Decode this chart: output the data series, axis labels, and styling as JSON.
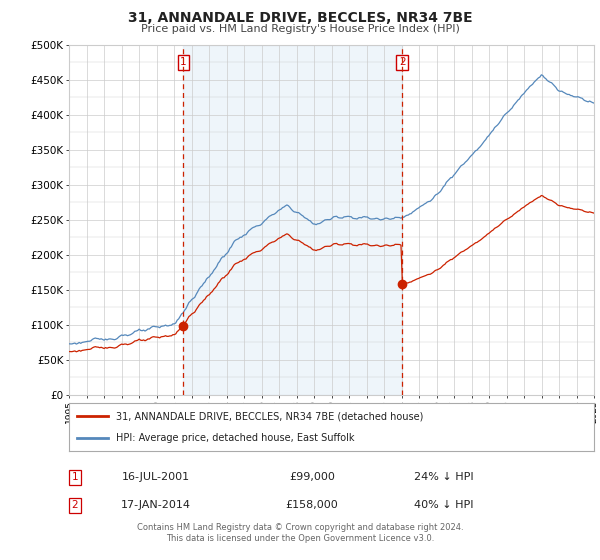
{
  "title_line1": "31, ANNANDALE DRIVE, BECCLES, NR34 7BE",
  "title_line2": "Price paid vs. HM Land Registry's House Price Index (HPI)",
  "ylim": [
    0,
    500000
  ],
  "yticks": [
    0,
    50000,
    100000,
    150000,
    200000,
    250000,
    300000,
    350000,
    400000,
    450000,
    500000
  ],
  "ytick_labels": [
    "£0",
    "£50K",
    "£100K",
    "£150K",
    "£200K",
    "£250K",
    "£300K",
    "£350K",
    "£400K",
    "£450K",
    "£500K"
  ],
  "hpi_color": "#5588bb",
  "property_color": "#cc2200",
  "dashed_line_color": "#cc2200",
  "shaded_color": "#ddeeff",
  "marker_color": "#cc2200",
  "background_color": "#ffffff",
  "grid_color": "#cccccc",
  "sale1_date_num": 2001.54,
  "sale1_price": 99000,
  "sale1_label": "1",
  "sale1_date_str": "16-JUL-2001",
  "sale1_price_str": "£99,000",
  "sale1_pct": "24% ↓ HPI",
  "sale2_date_num": 2014.05,
  "sale2_price": 158000,
  "sale2_label": "2",
  "sale2_date_str": "17-JAN-2014",
  "sale2_price_str": "£158,000",
  "sale2_pct": "40% ↓ HPI",
  "legend_line1": "31, ANNANDALE DRIVE, BECCLES, NR34 7BE (detached house)",
  "legend_line2": "HPI: Average price, detached house, East Suffolk",
  "footnote1": "Contains HM Land Registry data © Crown copyright and database right 2024.",
  "footnote2": "This data is licensed under the Open Government Licence v3.0."
}
